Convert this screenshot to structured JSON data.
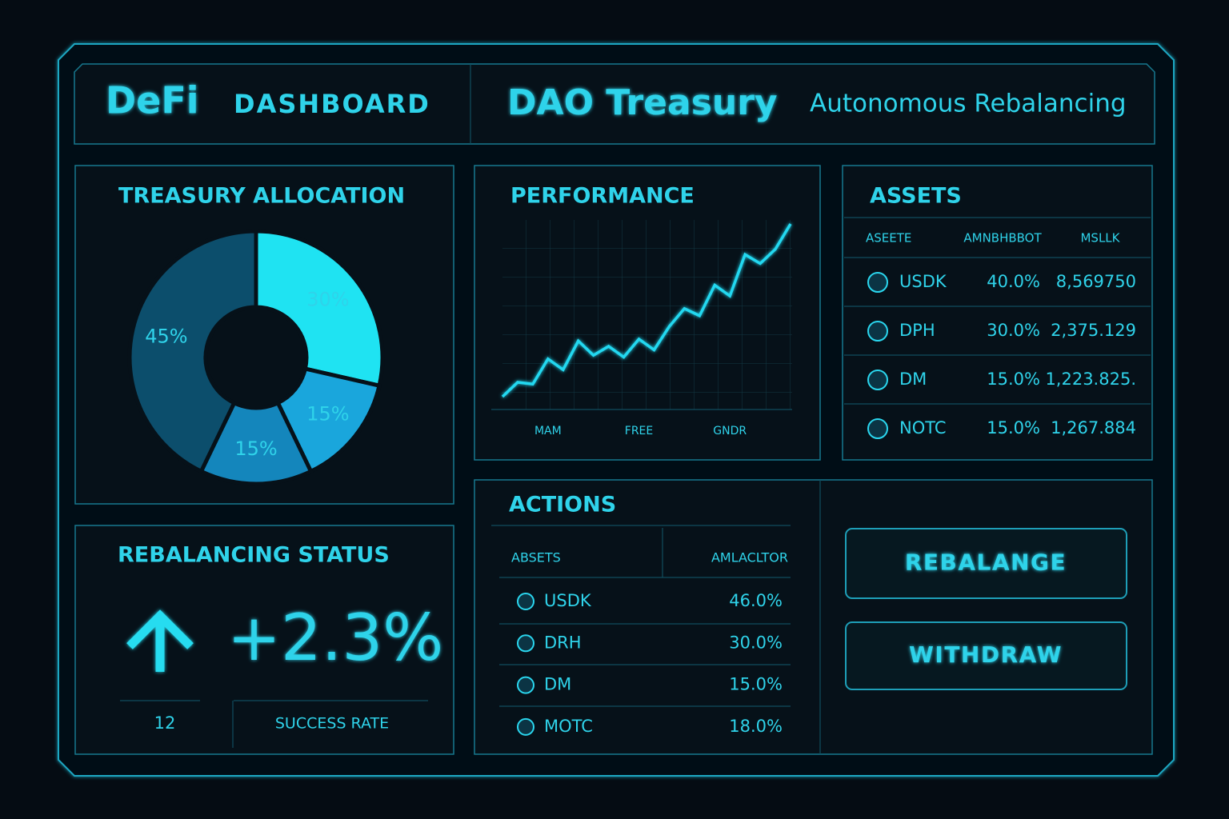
{
  "header": {
    "brand": "DeFi",
    "brand_suffix": "DASHBOARD",
    "title": "DAO Treasury",
    "subtitle": "Autonomous Rebalancing"
  },
  "chart_data": [
    {
      "type": "pie",
      "title": "TREASURY ALLOCATION",
      "values": [
        30,
        15,
        15,
        45
      ],
      "value_labels": [
        "30%",
        "15%",
        "15%",
        "45%"
      ],
      "colors": [
        "#1fe3f2",
        "#1aa6dc",
        "#1486bc",
        "#0c4e6c"
      ]
    },
    {
      "type": "line",
      "title": "PERFORMANCE",
      "categories": [
        null,
        null,
        null,
        "MAM",
        null,
        null,
        null,
        null,
        null,
        "FREE",
        null,
        null,
        null,
        null,
        null,
        "GNDR",
        null,
        null,
        null,
        null
      ],
      "values": [
        4,
        12,
        11,
        25,
        19,
        35,
        27,
        32,
        26,
        36,
        30,
        43,
        53,
        49,
        66,
        60,
        83,
        78,
        86,
        100
      ],
      "color": "#22d8f0",
      "ylim": [
        0,
        100
      ],
      "grid": true
    }
  ],
  "assets": {
    "title": "ASSETS",
    "headers": [
      "ASEETE",
      "AMNBHBBOT",
      "MSLLK"
    ],
    "rows": [
      [
        "USDK",
        "40.0%",
        "8,569750"
      ],
      [
        "DPH",
        "30.0%",
        "2,375.129"
      ],
      [
        "DM",
        "15.0%",
        "1,223.825."
      ],
      [
        "NOTC",
        "15.0%",
        "1,267.884"
      ]
    ]
  },
  "status": {
    "title": "REBALANCING STATUS",
    "change": "+2.3%",
    "count": "12",
    "label": "SUCCESS RATE"
  },
  "actions": {
    "title": "ACTIONS",
    "headers": [
      "ABSETS",
      "AMLACLTOR"
    ],
    "rows": [
      [
        "USDK",
        "46.0%"
      ],
      [
        "DRH",
        "30.0%"
      ],
      [
        "DM",
        "15.0%"
      ],
      [
        "MOTC",
        "18.0%"
      ]
    ]
  },
  "buttons": [
    "REBALANGE",
    "WITHDRAW"
  ]
}
